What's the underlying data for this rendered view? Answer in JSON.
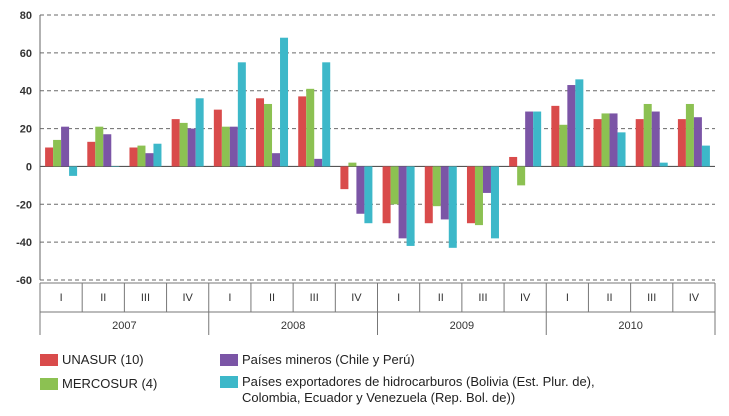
{
  "chart_data": {
    "type": "bar",
    "title": "",
    "xlabel": "",
    "ylabel": "",
    "ylim": [
      -60,
      80
    ],
    "yticks": [
      "80",
      "60",
      "40",
      "20",
      "0",
      "-20",
      "-40",
      "-60"
    ],
    "years": [
      "2007",
      "2008",
      "2009",
      "2010"
    ],
    "quarters": [
      "I",
      "II",
      "III",
      "IV"
    ],
    "categories": [
      "2007 I",
      "2007 II",
      "2007 III",
      "2007 IV",
      "2008 I",
      "2008 II",
      "2008 III",
      "2008 IV",
      "2009 I",
      "2009 II",
      "2009 III",
      "2009 IV",
      "2010 I",
      "2010 II",
      "2010 III",
      "2010 IV"
    ],
    "grid": true,
    "legend_position": "bottom",
    "series": [
      {
        "name": "UNASUR (10)",
        "color": "#d94b4b",
        "values": [
          10,
          13,
          10,
          25,
          30,
          36,
          37,
          -12,
          -30,
          -30,
          -30,
          5,
          32,
          25,
          25,
          25
        ]
      },
      {
        "name": "MERCOSUR (4)",
        "color": "#8cc152",
        "values": [
          14,
          21,
          11,
          23,
          21,
          33,
          41,
          2,
          -20,
          -21,
          -31,
          -10,
          22,
          28,
          33,
          33
        ]
      },
      {
        "name": "Países mineros (Chile y Perú)",
        "color": "#7b55a6",
        "values": [
          21,
          17,
          7,
          20,
          21,
          7,
          4,
          -25,
          -38,
          -28,
          -14,
          29,
          43,
          28,
          29,
          26
        ]
      },
      {
        "name": "Países exportadores de hidrocarburos (Bolivia (Est. Plur. de), Colombia, Ecuador y Venezuela (Rep. Bol. de))",
        "color": "#3db8c9",
        "values": [
          -5,
          0,
          12,
          36,
          55,
          68,
          55,
          -30,
          -42,
          -43,
          -38,
          29,
          46,
          18,
          2,
          11
        ]
      }
    ]
  },
  "legend": {
    "items": [
      {
        "label": "UNASUR (10)",
        "color": "#d94b4b"
      },
      {
        "label": "MERCOSUR (4)",
        "color": "#8cc152"
      },
      {
        "label": "Países mineros (Chile y Perú)",
        "color": "#7b55a6"
      },
      {
        "label": "Países exportadores de hidrocarburos (Bolivia (Est. Plur. de),\nColombia, Ecuador y Venezuela (Rep. Bol. de))",
        "color": "#3db8c9"
      }
    ]
  }
}
